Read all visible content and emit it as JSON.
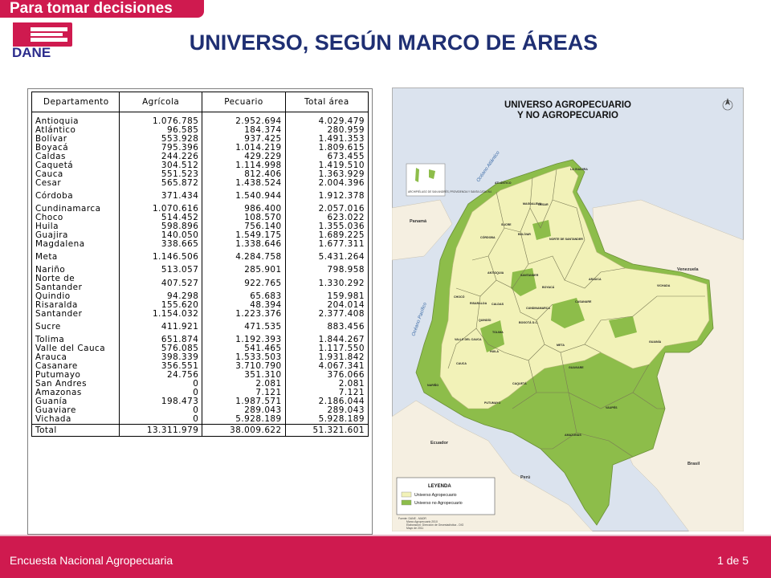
{
  "header": {
    "tagline": "Para tomar decisiones",
    "logo_text": "DANE",
    "title": "UNIVERSO, SEGÚN MARCO DE ÁREAS"
  },
  "table": {
    "headers": [
      "Departamento",
      "Agrícola",
      "Pecuario",
      "Total área"
    ],
    "rows": [
      {
        "name": "Antioquia",
        "agricola": "1.076.785",
        "pecuario": "2.952.694",
        "total": "4.029.479"
      },
      {
        "name": "Atlántico",
        "agricola": "96.585",
        "pecuario": "184.374",
        "total": "280.959"
      },
      {
        "name": "Bolívar",
        "agricola": "553.928",
        "pecuario": "937.425",
        "total": "1.491.353"
      },
      {
        "name": "Boyacá",
        "agricola": "795.396",
        "pecuario": "1.014.219",
        "total": "1.809.615"
      },
      {
        "name": "Caldas",
        "agricola": "244.226",
        "pecuario": "429.229",
        "total": "673.455"
      },
      {
        "name": "Caquetá",
        "agricola": "304.512",
        "pecuario": "1.114.998",
        "total": "1.419.510"
      },
      {
        "name": "Cauca",
        "agricola": "551.523",
        "pecuario": "812.406",
        "total": "1.363.929"
      },
      {
        "name": "Cesar",
        "agricola": "565.872",
        "pecuario": "1.438.524",
        "total": "2.004.396"
      },
      {
        "name": "Córdoba",
        "agricola": "371.434",
        "pecuario": "1.540.944",
        "total": "1.912.378"
      },
      {
        "name": "Cundinamarca",
        "agricola": "1.070.616",
        "pecuario": "986.400",
        "total": "2.057.016"
      },
      {
        "name": "Choco",
        "agricola": "514.452",
        "pecuario": "108.570",
        "total": "623.022"
      },
      {
        "name": "Huila",
        "agricola": "598.896",
        "pecuario": "756.140",
        "total": "1.355.036"
      },
      {
        "name": "Guajira",
        "agricola": "140.050",
        "pecuario": "1.549.175",
        "total": "1.689.225"
      },
      {
        "name": "Magdalena",
        "agricola": "338.665",
        "pecuario": "1.338.646",
        "total": "1.677.311"
      },
      {
        "name": "Meta",
        "agricola": "1.146.506",
        "pecuario": "4.284.758",
        "total": "5.431.264"
      },
      {
        "name": "Nariño",
        "agricola": "513.057",
        "pecuario": "285.901",
        "total": "798.958"
      },
      {
        "name": "Norte de Santander",
        "agricola": "407.527",
        "pecuario": "922.765",
        "total": "1.330.292"
      },
      {
        "name": "Quindio",
        "agricola": "94.298",
        "pecuario": "65.683",
        "total": "159.981"
      },
      {
        "name": "Risaralda",
        "agricola": "155.620",
        "pecuario": "48.394",
        "total": "204.014"
      },
      {
        "name": "Santander",
        "agricola": "1.154.032",
        "pecuario": "1.223.376",
        "total": "2.377.408"
      },
      {
        "name": "Sucre",
        "agricola": "411.921",
        "pecuario": "471.535",
        "total": "883.456"
      },
      {
        "name": "Tolima",
        "agricola": "651.874",
        "pecuario": "1.192.393",
        "total": "1.844.267"
      },
      {
        "name": "Valle del Cauca",
        "agricola": "576.085",
        "pecuario": "541.465",
        "total": "1.117.550"
      },
      {
        "name": "Arauca",
        "agricola": "398.339",
        "pecuario": "1.533.503",
        "total": "1.931.842"
      },
      {
        "name": "Casanare",
        "agricola": "356.551",
        "pecuario": "3.710.790",
        "total": "4.067.341"
      },
      {
        "name": "Putumayo",
        "agricola": "24.756",
        "pecuario": "351.310",
        "total": "376.066"
      },
      {
        "name": "San Andres",
        "agricola": "0",
        "pecuario": "2.081",
        "total": "2.081"
      },
      {
        "name": "Amazonas",
        "agricola": "0",
        "pecuario": "7.121",
        "total": "7.121"
      },
      {
        "name": "Guanía",
        "agricola": "198.473",
        "pecuario": "1.987.571",
        "total": "2.186.044"
      },
      {
        "name": "Guaviare",
        "agricola": "0",
        "pecuario": "289.043",
        "total": "289.043"
      },
      {
        "name": "Vichada",
        "agricola": "0",
        "pecuario": "5.928.189",
        "total": "5.928.189"
      }
    ],
    "total": {
      "name": "Total",
      "agricola": "13.311.979",
      "pecuario": "38.009.622",
      "total": "51.321.601"
    }
  },
  "map": {
    "title_line1": "UNIVERSO AGROPECUARIO",
    "title_line2": "Y NO AGROPECUARIO",
    "legend_title": "LEYENDA",
    "legend_items": [
      "Universo Agropecuario",
      "Universo no Agropecuario"
    ],
    "ocean_atlantic": "Océano Atlántico",
    "ocean_pacific": "Océano Pacífico",
    "countries": [
      "Panamá",
      "Venezuela",
      "Ecuador",
      "Perú",
      "Brasil"
    ],
    "departments": [
      "LA GUAJIRA",
      "ATLÁNTICO",
      "MAGDALENA",
      "CESAR",
      "BOLÍVAR",
      "SUCRE",
      "CÓRDOBA",
      "NORTE DE SANTANDER",
      "ANTIOQUIA",
      "SANTANDER",
      "ARAUCA",
      "BOYACÁ",
      "CHOCÓ",
      "CALDAS",
      "RISARALDA",
      "CUNDINAMARCA",
      "CASANARE",
      "VICHADA",
      "QUINDÍO",
      "TOLIMA",
      "BOGOTÁ D.C.",
      "META",
      "VALLE DEL CAUCA",
      "HUILA",
      "CAUCA",
      "GUAINÍA",
      "GUAVIARE",
      "NARIÑO",
      "CAQUETÁ",
      "PUTUMAYO",
      "VAUPÉS",
      "AMAZONAS"
    ],
    "archipelago": "ARCHIPIÉLAGO DE SAN ANDRÉS, PROVIDENCIA Y SANTA CATALINA",
    "source_lines": [
      "Fuente: DANE - MADR",
      "Marco Agropecuario 2010",
      "Elaboración: Dirección de Geoestadística - DIG",
      "Mayo de 2011"
    ],
    "colors": {
      "agro": "#f2f2b8",
      "no_agro": "#8dbd4a",
      "sea": "#dbe3ee",
      "land_other": "#f5efe1"
    }
  },
  "footer": {
    "left": "Encuesta Nacional Agropecuaria",
    "right": "1 de 5"
  }
}
